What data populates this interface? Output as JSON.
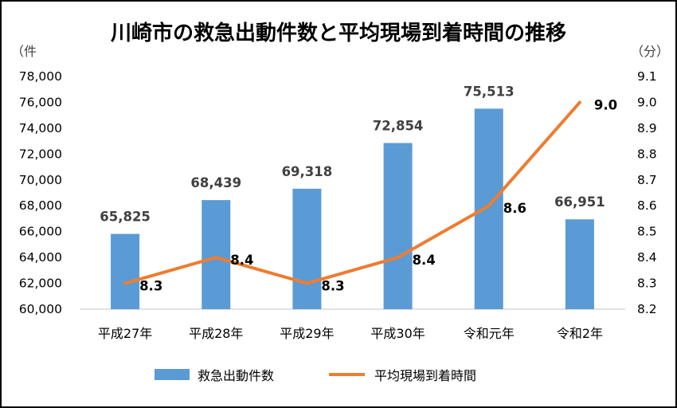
{
  "chart_data": {
    "type": "bar",
    "title": "川崎市の救急出動件数と平均現場到着時間の推移",
    "categories": [
      "平成27年",
      "平成28年",
      "平成29年",
      "平成30年",
      "令和元年",
      "令和2年"
    ],
    "y_left": {
      "unit_label": "（件",
      "ylim": [
        60000,
        78000
      ],
      "ticks": [
        "60,000",
        "62,000",
        "64,000",
        "66,000",
        "68,000",
        "70,000",
        "72,000",
        "74,000",
        "76,000",
        "78,000"
      ]
    },
    "y_right": {
      "unit_label": "（分）",
      "ylim": [
        8.2,
        9.1
      ],
      "ticks": [
        "8.2",
        "8.3",
        "8.4",
        "8.5",
        "8.6",
        "8.7",
        "8.8",
        "8.9",
        "9.0",
        "9.1"
      ]
    },
    "series": [
      {
        "name": "救急出動件数",
        "type": "bar",
        "axis": "left",
        "color": "#5B9BD5",
        "values": [
          65825,
          68439,
          69318,
          72854,
          75513,
          66951
        ],
        "labels": [
          "65,825",
          "68,439",
          "69,318",
          "72,854",
          "75,513",
          "66,951"
        ]
      },
      {
        "name": "平均現場到着時間",
        "type": "line",
        "axis": "right",
        "color": "#ED7D31",
        "values": [
          8.3,
          8.4,
          8.3,
          8.4,
          8.6,
          9.0
        ],
        "labels": [
          "8.3",
          "8.4",
          "8.3",
          "8.4",
          "8.6",
          "9.0"
        ]
      }
    ],
    "legend": "bottom",
    "grid": false
  }
}
